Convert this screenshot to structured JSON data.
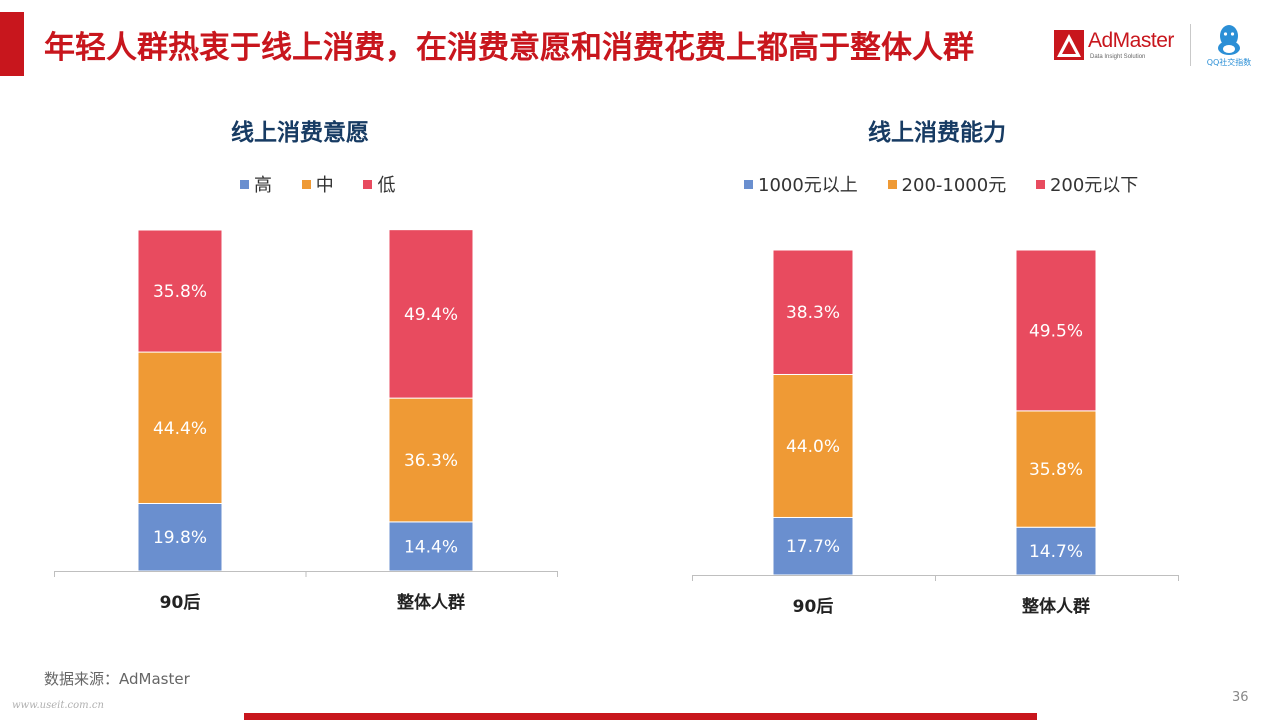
{
  "header": {
    "title": "年轻人群热衷于线上消费，在消费意愿和消费花费上都高于整体人群",
    "brand_name": "AdMaster",
    "brand_tagline": "Data Insight Solution",
    "qq_label": "QQ社交指数"
  },
  "colors": {
    "accent": "#c8161d",
    "title_navy": "#173b63",
    "series_blue": "#6a8fcf",
    "series_orange": "#ef9a35",
    "series_red": "#e84b5f"
  },
  "chart_data": [
    {
      "type": "bar",
      "stacked": true,
      "title": "线上消费意愿",
      "categories": [
        "90后",
        "整体人群"
      ],
      "series": [
        {
          "name": "高",
          "values": [
            19.8,
            14.4
          ],
          "labels": [
            "19.8%",
            "14.4%"
          ],
          "color": "#6a8fcf"
        },
        {
          "name": "中",
          "values": [
            44.4,
            36.3
          ],
          "labels": [
            "44.4%",
            "36.3%"
          ],
          "color": "#ef9a35"
        },
        {
          "name": "低",
          "values": [
            35.8,
            49.4
          ],
          "labels": [
            "35.8%",
            "49.4%"
          ],
          "color": "#e84b5f"
        }
      ],
      "ylim": [
        0,
        100
      ],
      "grid": false,
      "legend": "top-center"
    },
    {
      "type": "bar",
      "stacked": true,
      "title": "线上消费能力",
      "categories": [
        "90后",
        "整体人群"
      ],
      "series": [
        {
          "name": "1000元以上",
          "values": [
            17.7,
            14.7
          ],
          "labels": [
            "17.7%",
            "14.7%"
          ],
          "color": "#6a8fcf"
        },
        {
          "name": "200-1000元",
          "values": [
            44.0,
            35.8
          ],
          "labels": [
            "44.0%",
            "35.8%"
          ],
          "color": "#ef9a35"
        },
        {
          "name": "200元以下",
          "values": [
            38.3,
            49.5
          ],
          "labels": [
            "38.3%",
            "49.5%"
          ],
          "color": "#e84b5f"
        }
      ],
      "ylim": [
        0,
        100
      ],
      "grid": false,
      "legend": "top-center"
    }
  ],
  "footer": {
    "source": "数据来源：AdMaster",
    "watermark": "www.useit.com.cn",
    "page_number": "36"
  }
}
